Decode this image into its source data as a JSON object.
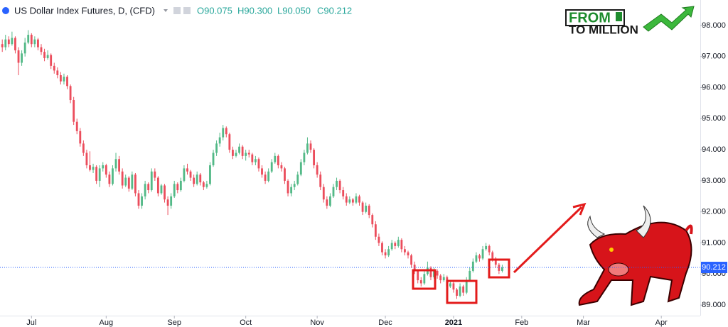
{
  "chart_data": {
    "type": "candlestick",
    "title": "US Dollar Index Futures, D, (CFD)",
    "ohlc_text": [
      "O90.075",
      "H90.300",
      "L90.050",
      "C90.212"
    ],
    "logo": [
      "FROM",
      "TO MILLION"
    ],
    "up_color": "#53b987",
    "down_color": "#eb4d5c",
    "last_price": 90.212,
    "xlim": [
      -0.7,
      215
    ],
    "xticks": [
      {
        "value": 9,
        "label": "Jul"
      },
      {
        "value": 32,
        "label": "Aug"
      },
      {
        "value": 53,
        "label": "Sep"
      },
      {
        "value": 75,
        "label": "Oct"
      },
      {
        "value": 97,
        "label": "Nov"
      },
      {
        "value": 118,
        "label": "Dec"
      },
      {
        "value": 139,
        "label": "2021"
      },
      {
        "value": 160,
        "label": "Feb"
      },
      {
        "value": 179,
        "label": "Mar"
      },
      {
        "value": 203,
        "label": "Apr"
      }
    ],
    "ylim": [
      88.66,
      98.82
    ],
    "yticks": [
      {
        "value": 89,
        "label": "89.000"
      },
      {
        "value": 90,
        "label": "90.000"
      },
      {
        "value": 91,
        "label": "91.000"
      },
      {
        "value": 92,
        "label": "92.000"
      },
      {
        "value": 93,
        "label": "93.000"
      },
      {
        "value": 94,
        "label": "94.000"
      },
      {
        "value": 95,
        "label": "95.000"
      },
      {
        "value": 96,
        "label": "96.000"
      },
      {
        "value": 97,
        "label": "97.000"
      },
      {
        "value": 98,
        "label": "98.000"
      }
    ],
    "candles": [
      [
        97.4,
        97.55,
        97.15,
        97.3
      ],
      [
        97.3,
        97.7,
        97.2,
        97.55
      ],
      [
        97.55,
        97.65,
        97.3,
        97.4
      ],
      [
        97.4,
        97.8,
        97.35,
        97.6
      ],
      [
        97.6,
        97.65,
        97.1,
        97.2
      ],
      [
        97.2,
        97.3,
        96.4,
        96.8
      ],
      [
        96.8,
        97.2,
        96.7,
        97.1
      ],
      [
        97.1,
        97.6,
        97.0,
        97.45
      ],
      [
        97.45,
        97.85,
        97.4,
        97.7
      ],
      [
        97.7,
        97.75,
        97.3,
        97.4
      ],
      [
        97.4,
        97.65,
        97.3,
        97.55
      ],
      [
        97.55,
        97.6,
        97.2,
        97.3
      ],
      [
        97.3,
        97.4,
        97.05,
        97.15
      ],
      [
        97.15,
        97.25,
        96.85,
        96.95
      ],
      [
        96.95,
        97.2,
        96.9,
        97.05
      ],
      [
        97.05,
        97.1,
        96.6,
        96.7
      ],
      [
        96.7,
        96.8,
        96.45,
        96.55
      ],
      [
        96.55,
        96.65,
        96.3,
        96.4
      ],
      [
        96.4,
        96.5,
        96.1,
        96.2
      ],
      [
        96.2,
        96.45,
        96.1,
        96.35
      ],
      [
        96.35,
        96.4,
        95.95,
        96.05
      ],
      [
        96.05,
        96.1,
        95.5,
        95.6
      ],
      [
        95.6,
        95.7,
        94.8,
        94.9
      ],
      [
        94.9,
        95.0,
        94.5,
        94.6
      ],
      [
        94.6,
        94.7,
        94.1,
        94.2
      ],
      [
        94.2,
        94.3,
        93.8,
        93.9
      ],
      [
        93.9,
        94.0,
        93.4,
        93.5
      ],
      [
        93.5,
        93.95,
        93.3,
        93.35
      ],
      [
        93.35,
        93.55,
        93.25,
        93.45
      ],
      [
        93.45,
        93.5,
        92.9,
        93.0
      ],
      [
        93.0,
        93.5,
        92.8,
        93.4
      ],
      [
        93.4,
        93.6,
        93.3,
        93.5
      ],
      [
        93.5,
        93.55,
        93.1,
        93.2
      ],
      [
        93.2,
        93.3,
        92.8,
        92.9
      ],
      [
        92.9,
        93.5,
        92.85,
        93.4
      ],
      [
        93.4,
        93.9,
        93.3,
        93.7
      ],
      [
        93.7,
        93.8,
        93.2,
        93.3
      ],
      [
        93.3,
        93.4,
        92.75,
        92.85
      ],
      [
        92.85,
        93.2,
        92.8,
        93.1
      ],
      [
        93.1,
        93.15,
        92.65,
        92.75
      ],
      [
        92.75,
        93.3,
        92.7,
        93.2
      ],
      [
        93.2,
        93.25,
        92.5,
        92.6
      ],
      [
        92.6,
        92.7,
        92.1,
        92.2
      ],
      [
        92.2,
        92.6,
        92.1,
        92.5
      ],
      [
        92.5,
        93.0,
        92.4,
        92.9
      ],
      [
        92.9,
        92.95,
        92.6,
        92.7
      ],
      [
        92.7,
        93.4,
        92.65,
        93.3
      ],
      [
        93.3,
        93.4,
        93.0,
        93.1
      ],
      [
        93.1,
        93.15,
        92.5,
        92.6
      ],
      [
        92.6,
        92.9,
        92.55,
        92.85
      ],
      [
        92.85,
        92.9,
        92.3,
        92.4
      ],
      [
        92.4,
        92.5,
        91.9,
        92.2
      ],
      [
        92.2,
        92.6,
        92.1,
        92.5
      ],
      [
        92.5,
        93.0,
        92.45,
        92.9
      ],
      [
        92.9,
        92.95,
        92.6,
        92.7
      ],
      [
        92.7,
        93.1,
        92.65,
        93.0
      ],
      [
        93.0,
        93.5,
        92.95,
        93.4
      ],
      [
        93.4,
        93.55,
        93.2,
        93.3
      ],
      [
        93.3,
        93.35,
        93.0,
        93.1
      ],
      [
        93.1,
        93.2,
        92.8,
        92.9
      ],
      [
        92.9,
        93.3,
        92.85,
        93.2
      ],
      [
        93.2,
        93.25,
        92.85,
        92.95
      ],
      [
        92.95,
        93.0,
        92.7,
        92.8
      ],
      [
        92.8,
        93.0,
        92.75,
        92.9
      ],
      [
        92.9,
        93.6,
        92.85,
        93.5
      ],
      [
        93.5,
        94.0,
        93.45,
        93.9
      ],
      [
        93.9,
        94.3,
        93.8,
        94.2
      ],
      [
        94.2,
        94.55,
        94.1,
        94.4
      ],
      [
        94.4,
        94.8,
        94.3,
        94.7
      ],
      [
        94.7,
        94.75,
        94.4,
        94.5
      ],
      [
        94.5,
        94.55,
        93.9,
        94.0
      ],
      [
        94.0,
        94.1,
        93.7,
        93.8
      ],
      [
        93.8,
        94.0,
        93.75,
        93.9
      ],
      [
        93.9,
        94.2,
        93.85,
        94.1
      ],
      [
        94.1,
        94.15,
        93.7,
        93.8
      ],
      [
        93.8,
        94.0,
        93.65,
        93.9
      ],
      [
        93.9,
        94.0,
        93.75,
        93.85
      ],
      [
        93.85,
        93.9,
        93.5,
        93.6
      ],
      [
        93.6,
        93.8,
        93.5,
        93.7
      ],
      [
        93.7,
        93.75,
        93.3,
        93.4
      ],
      [
        93.4,
        93.5,
        93.1,
        93.2
      ],
      [
        93.2,
        93.3,
        92.9,
        93.0
      ],
      [
        93.0,
        93.4,
        92.95,
        93.3
      ],
      [
        93.3,
        93.7,
        93.25,
        93.6
      ],
      [
        93.6,
        93.9,
        93.55,
        93.8
      ],
      [
        93.8,
        93.85,
        93.4,
        93.5
      ],
      [
        93.5,
        93.6,
        93.3,
        93.4
      ],
      [
        93.4,
        93.45,
        92.9,
        93.0
      ],
      [
        93.0,
        93.05,
        92.5,
        92.6
      ],
      [
        92.6,
        92.9,
        92.5,
        92.8
      ],
      [
        92.8,
        93.0,
        92.7,
        92.9
      ],
      [
        92.9,
        93.3,
        92.85,
        93.2
      ],
      [
        93.2,
        93.7,
        93.15,
        93.6
      ],
      [
        93.6,
        94.0,
        93.5,
        93.9
      ],
      [
        93.9,
        94.4,
        93.85,
        94.2
      ],
      [
        94.2,
        94.3,
        93.9,
        94.0
      ],
      [
        94.0,
        94.05,
        93.4,
        93.5
      ],
      [
        93.5,
        93.6,
        93.1,
        93.2
      ],
      [
        93.2,
        93.3,
        92.7,
        92.8
      ],
      [
        92.8,
        92.9,
        92.3,
        92.4
      ],
      [
        92.4,
        92.5,
        92.1,
        92.2
      ],
      [
        92.2,
        92.6,
        92.15,
        92.5
      ],
      [
        92.5,
        92.9,
        92.45,
        92.8
      ],
      [
        92.8,
        93.1,
        92.7,
        93.0
      ],
      [
        93.0,
        93.05,
        92.6,
        92.7
      ],
      [
        92.7,
        92.8,
        92.4,
        92.5
      ],
      [
        92.5,
        92.6,
        92.2,
        92.3
      ],
      [
        92.3,
        92.5,
        92.25,
        92.4
      ],
      [
        92.4,
        92.45,
        92.2,
        92.3
      ],
      [
        92.3,
        92.6,
        92.25,
        92.5
      ],
      [
        92.5,
        92.55,
        92.2,
        92.3
      ],
      [
        92.3,
        92.35,
        91.9,
        92.0
      ],
      [
        92.0,
        92.3,
        91.95,
        92.2
      ],
      [
        92.2,
        92.25,
        91.8,
        91.9
      ],
      [
        91.9,
        91.95,
        91.5,
        91.6
      ],
      [
        91.6,
        91.7,
        91.1,
        91.2
      ],
      [
        91.2,
        91.3,
        90.9,
        91.0
      ],
      [
        91.0,
        91.05,
        90.6,
        90.7
      ],
      [
        90.7,
        90.8,
        90.5,
        90.6
      ],
      [
        90.6,
        90.9,
        90.55,
        90.8
      ],
      [
        90.8,
        91.1,
        90.75,
        91.0
      ],
      [
        91.0,
        91.05,
        90.8,
        90.9
      ],
      [
        90.9,
        91.2,
        90.85,
        91.1
      ],
      [
        91.1,
        91.15,
        90.7,
        90.8
      ],
      [
        90.8,
        90.9,
        90.6,
        90.7
      ],
      [
        90.7,
        90.75,
        90.5,
        90.6
      ],
      [
        90.6,
        90.65,
        90.2,
        90.3
      ],
      [
        90.3,
        90.4,
        90.0,
        90.1
      ],
      [
        90.1,
        90.15,
        89.7,
        89.8
      ],
      [
        89.8,
        89.9,
        89.6,
        89.7
      ],
      [
        89.7,
        90.1,
        89.65,
        90.0
      ],
      [
        90.0,
        90.4,
        89.95,
        90.2
      ],
      [
        90.2,
        90.25,
        89.8,
        89.9
      ],
      [
        89.9,
        90.2,
        89.85,
        90.1
      ],
      [
        90.1,
        90.15,
        89.85,
        89.95
      ],
      [
        89.95,
        90.0,
        89.7,
        89.8
      ],
      [
        89.8,
        90.0,
        89.75,
        89.9
      ],
      [
        89.9,
        89.95,
        89.5,
        89.6
      ],
      [
        89.6,
        89.8,
        89.55,
        89.7
      ],
      [
        89.7,
        89.75,
        89.4,
        89.5
      ],
      [
        89.5,
        89.55,
        89.2,
        89.3
      ],
      [
        89.3,
        89.7,
        89.25,
        89.6
      ],
      [
        89.6,
        89.65,
        89.3,
        89.4
      ],
      [
        89.4,
        89.9,
        89.35,
        89.8
      ],
      [
        89.8,
        90.2,
        89.75,
        90.1
      ],
      [
        90.1,
        90.5,
        90.05,
        90.4
      ],
      [
        90.4,
        90.7,
        90.35,
        90.6
      ],
      [
        90.6,
        90.65,
        90.4,
        90.5
      ],
      [
        90.5,
        90.9,
        90.45,
        90.8
      ],
      [
        90.8,
        91.0,
        90.75,
        90.9
      ],
      [
        90.9,
        90.95,
        90.6,
        90.7
      ],
      [
        90.7,
        90.75,
        90.4,
        90.5
      ],
      [
        90.5,
        90.55,
        90.2,
        90.3
      ],
      [
        90.3,
        90.35,
        90.0,
        90.1
      ],
      [
        90.1,
        90.3,
        90.05,
        90.212
      ]
    ]
  }
}
